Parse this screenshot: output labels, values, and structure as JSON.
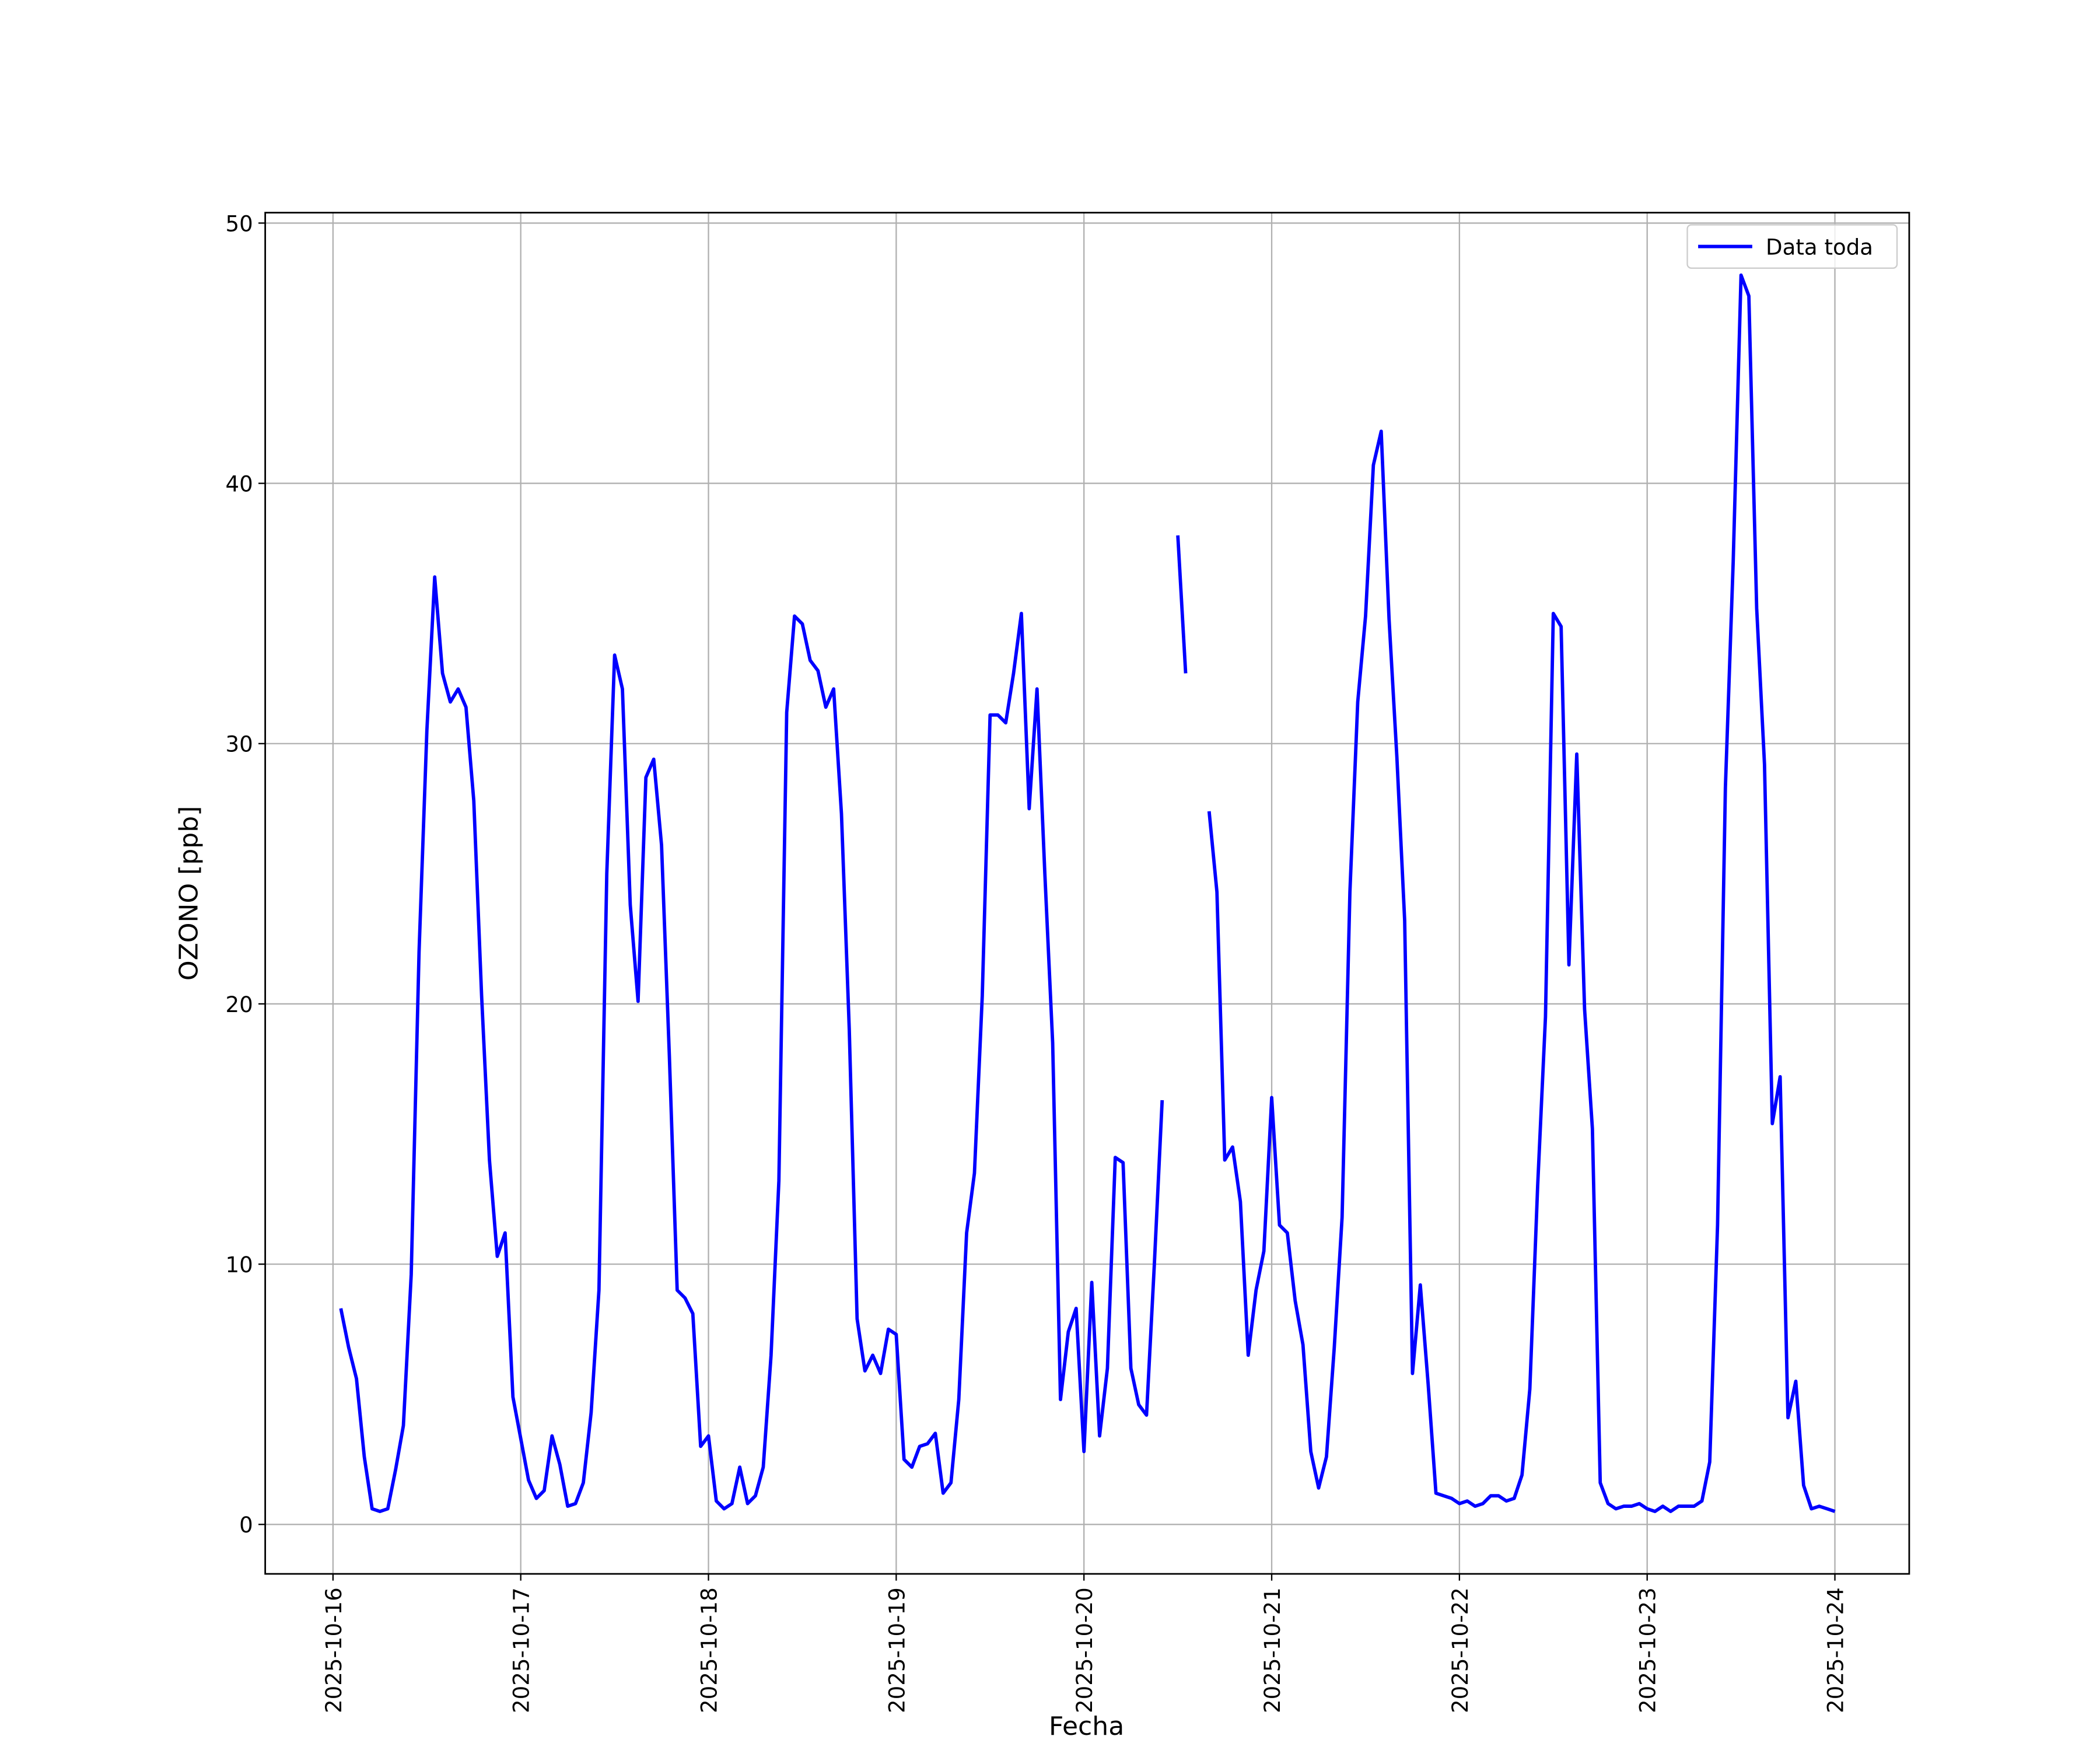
{
  "chart_data": {
    "type": "line",
    "xlabel": "Fecha",
    "ylabel": "OZONO [ppb]",
    "x": [
      "2025-10-16 01:00",
      "2025-10-16 02:00",
      "2025-10-16 03:00",
      "2025-10-16 04:00",
      "2025-10-16 05:00",
      "2025-10-16 06:00",
      "2025-10-16 07:00",
      "2025-10-16 08:00",
      "2025-10-16 09:00",
      "2025-10-16 10:00",
      "2025-10-16 11:00",
      "2025-10-16 12:00",
      "2025-10-16 13:00",
      "2025-10-16 14:00",
      "2025-10-16 15:00",
      "2025-10-16 16:00",
      "2025-10-16 17:00",
      "2025-10-16 18:00",
      "2025-10-16 19:00",
      "2025-10-16 20:00",
      "2025-10-16 21:00",
      "2025-10-16 22:00",
      "2025-10-16 23:00",
      "2025-10-17 00:00",
      "2025-10-17 01:00",
      "2025-10-17 02:00",
      "2025-10-17 03:00",
      "2025-10-17 04:00",
      "2025-10-17 05:00",
      "2025-10-17 06:00",
      "2025-10-17 07:00",
      "2025-10-17 08:00",
      "2025-10-17 09:00",
      "2025-10-17 10:00",
      "2025-10-17 11:00",
      "2025-10-17 12:00",
      "2025-10-17 13:00",
      "2025-10-17 14:00",
      "2025-10-17 15:00",
      "2025-10-17 16:00",
      "2025-10-17 17:00",
      "2025-10-17 18:00",
      "2025-10-17 19:00",
      "2025-10-17 20:00",
      "2025-10-17 21:00",
      "2025-10-17 22:00",
      "2025-10-17 23:00",
      "2025-10-18 00:00",
      "2025-10-18 01:00",
      "2025-10-18 02:00",
      "2025-10-18 03:00",
      "2025-10-18 04:00",
      "2025-10-18 05:00",
      "2025-10-18 06:00",
      "2025-10-18 07:00",
      "2025-10-18 08:00",
      "2025-10-18 09:00",
      "2025-10-18 10:00",
      "2025-10-18 11:00",
      "2025-10-18 12:00",
      "2025-10-18 13:00",
      "2025-10-18 14:00",
      "2025-10-18 15:00",
      "2025-10-18 16:00",
      "2025-10-18 17:00",
      "2025-10-18 18:00",
      "2025-10-18 19:00",
      "2025-10-18 20:00",
      "2025-10-18 21:00",
      "2025-10-18 22:00",
      "2025-10-18 23:00",
      "2025-10-19 00:00",
      "2025-10-19 01:00",
      "2025-10-19 02:00",
      "2025-10-19 03:00",
      "2025-10-19 04:00",
      "2025-10-19 05:00",
      "2025-10-19 06:00",
      "2025-10-19 07:00",
      "2025-10-19 08:00",
      "2025-10-19 09:00",
      "2025-10-19 10:00",
      "2025-10-19 11:00",
      "2025-10-19 12:00",
      "2025-10-19 13:00",
      "2025-10-19 14:00",
      "2025-10-19 15:00",
      "2025-10-19 16:00",
      "2025-10-19 17:00",
      "2025-10-19 18:00",
      "2025-10-19 19:00",
      "2025-10-19 20:00",
      "2025-10-19 21:00",
      "2025-10-19 22:00",
      "2025-10-19 23:00",
      "2025-10-20 00:00",
      "2025-10-20 01:00",
      "2025-10-20 02:00",
      "2025-10-20 03:00",
      "2025-10-20 04:00",
      "2025-10-20 05:00",
      "2025-10-20 06:00",
      "2025-10-20 07:00",
      "2025-10-20 08:00",
      "2025-10-20 09:00",
      "2025-10-20 10:00",
      "2025-10-20 11:00",
      "2025-10-20 12:00",
      "2025-10-20 13:00",
      "2025-10-20 14:00",
      "2025-10-20 15:00",
      "2025-10-20 16:00",
      "2025-10-20 17:00",
      "2025-10-20 18:00",
      "2025-10-20 19:00",
      "2025-10-20 20:00",
      "2025-10-20 21:00",
      "2025-10-20 22:00",
      "2025-10-20 23:00",
      "2025-10-21 00:00",
      "2025-10-21 01:00",
      "2025-10-21 02:00",
      "2025-10-21 03:00",
      "2025-10-21 04:00",
      "2025-10-21 05:00",
      "2025-10-21 06:00",
      "2025-10-21 07:00",
      "2025-10-21 08:00",
      "2025-10-21 09:00",
      "2025-10-21 10:00",
      "2025-10-21 11:00",
      "2025-10-21 12:00",
      "2025-10-21 13:00",
      "2025-10-21 14:00",
      "2025-10-21 15:00",
      "2025-10-21 16:00",
      "2025-10-21 17:00",
      "2025-10-21 18:00",
      "2025-10-21 19:00",
      "2025-10-21 20:00",
      "2025-10-21 21:00",
      "2025-10-21 22:00",
      "2025-10-21 23:00",
      "2025-10-22 00:00",
      "2025-10-22 01:00",
      "2025-10-22 02:00",
      "2025-10-22 03:00",
      "2025-10-22 04:00",
      "2025-10-22 05:00",
      "2025-10-22 06:00",
      "2025-10-22 07:00",
      "2025-10-22 08:00",
      "2025-10-22 09:00",
      "2025-10-22 10:00",
      "2025-10-22 11:00",
      "2025-10-22 12:00",
      "2025-10-22 13:00",
      "2025-10-22 14:00",
      "2025-10-22 15:00",
      "2025-10-22 16:00",
      "2025-10-22 17:00",
      "2025-10-22 18:00",
      "2025-10-22 19:00",
      "2025-10-22 20:00",
      "2025-10-22 21:00",
      "2025-10-22 22:00",
      "2025-10-22 23:00",
      "2025-10-23 00:00",
      "2025-10-23 01:00",
      "2025-10-23 02:00",
      "2025-10-23 03:00",
      "2025-10-23 04:00",
      "2025-10-23 05:00",
      "2025-10-23 06:00",
      "2025-10-23 07:00",
      "2025-10-23 08:00",
      "2025-10-23 09:00",
      "2025-10-23 10:00",
      "2025-10-23 11:00",
      "2025-10-23 12:00",
      "2025-10-23 13:00",
      "2025-10-23 14:00",
      "2025-10-23 15:00",
      "2025-10-23 16:00",
      "2025-10-23 17:00",
      "2025-10-23 18:00",
      "2025-10-23 19:00",
      "2025-10-23 20:00",
      "2025-10-23 21:00",
      "2025-10-23 22:00",
      "2025-10-23 23:00",
      "2025-10-24 00:00"
    ],
    "series": [
      {
        "name": "Data toda",
        "color": "#0000ff",
        "values": [
          8.3,
          6.8,
          5.6,
          2.6,
          0.6,
          0.5,
          0.6,
          2.1,
          3.8,
          9.6,
          22,
          30.5,
          36.4,
          32.7,
          31.6,
          32.1,
          31.4,
          27.8,
          20.3,
          14,
          10.3,
          11.2,
          4.9,
          3.3,
          1.7,
          1.0,
          1.3,
          3.4,
          2.3,
          0.7,
          0.8,
          1.6,
          4.3,
          9,
          25,
          33.4,
          32.1,
          23.8,
          20.1,
          28.7,
          29.4,
          26.1,
          18,
          9,
          8.7,
          8.1,
          3.0,
          3.4,
          0.9,
          0.6,
          0.8,
          2.2,
          0.8,
          1.1,
          2.2,
          6.5,
          13.2,
          31.2,
          34.9,
          34.6,
          33.2,
          32.8,
          31.4,
          32.1,
          27.3,
          19,
          7.9,
          5.9,
          6.5,
          5.8,
          7.5,
          7.3,
          2.5,
          2.2,
          3.0,
          3.1,
          3.5,
          1.2,
          1.6,
          4.8,
          11.2,
          13.5,
          20.3,
          31.1,
          31.1,
          30.8,
          32.7,
          35,
          27.5,
          32.1,
          25,
          18.5,
          4.8,
          7.4,
          8.3,
          2.8,
          9.3,
          3.4,
          6,
          14.1,
          13.9,
          6,
          4.6,
          4.2,
          10,
          16.3,
          null,
          38,
          32.7,
          null,
          null,
          27.4,
          24.3,
          14,
          14.5,
          12.4,
          6.5,
          9,
          10.5,
          16.4,
          11.5,
          11.2,
          8.6,
          6.9,
          2.8,
          1.4,
          2.6,
          6.8,
          11.8,
          24.3,
          31.6,
          34.9,
          40.7,
          42,
          34.8,
          29.5,
          23.2,
          5.8,
          9.2,
          5.4,
          1.2,
          1.1,
          1.0,
          0.8,
          0.9,
          0.7,
          0.8,
          1.1,
          1.1,
          0.9,
          1.0,
          1.9,
          5.2,
          13,
          19.5,
          35,
          34.5,
          21.5,
          29.6,
          19.8,
          15.2,
          1.6,
          0.8,
          0.6,
          0.7,
          0.7,
          0.8,
          0.6,
          0.5,
          0.7,
          0.5,
          0.7,
          0.7,
          0.7,
          0.9,
          2.4,
          11.5,
          28.3,
          37,
          48,
          47.2,
          35.2,
          29.2,
          15.4,
          17.2,
          4.1,
          5.5,
          1.5,
          0.6,
          0.7,
          0.6,
          0.5
        ]
      }
    ],
    "xlim": [
      "2025-10-15 15:20",
      "2025-10-24 09:30"
    ],
    "xticks": [
      "2025-10-16",
      "2025-10-17",
      "2025-10-18",
      "2025-10-19",
      "2025-10-20",
      "2025-10-21",
      "2025-10-22",
      "2025-10-23",
      "2025-10-24"
    ],
    "ylim": [
      -1.9,
      50.4
    ],
    "yticks": [
      0,
      10,
      20,
      30,
      40,
      50
    ],
    "grid": true,
    "legend": "upper right"
  }
}
